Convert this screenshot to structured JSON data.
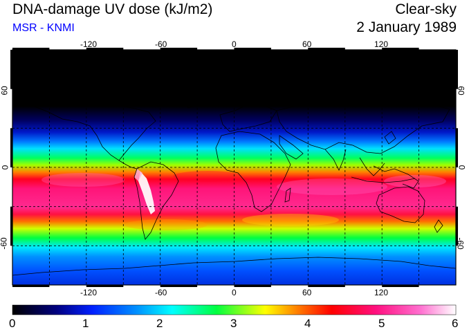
{
  "header": {
    "title": "DNA-damage UV dose (kJ/m2)",
    "subtitle": "MSR - KNMI",
    "mode": "Clear-sky",
    "date": "2 January 1989"
  },
  "map": {
    "projection": "equirectangular",
    "lon_range": [
      -180,
      180
    ],
    "lat_range": [
      -90,
      90
    ],
    "lon_ticks": [
      "-120",
      "-60",
      "0",
      "60",
      "120"
    ],
    "lat_ticks_left": [
      "60",
      "0",
      "-60"
    ],
    "lat_ticks_right": [
      "60",
      "0",
      "-60"
    ]
  },
  "colorbar": {
    "min": 0,
    "max": 6,
    "labels": [
      "0",
      "1",
      "2",
      "3",
      "4",
      "5",
      "6"
    ],
    "colors": [
      "#000000",
      "#0000c8",
      "#0064ff",
      "#00ffff",
      "#00ff00",
      "#ffff00",
      "#ff0000",
      "#ff1493",
      "#ff69b4",
      "#ffffff"
    ]
  }
}
